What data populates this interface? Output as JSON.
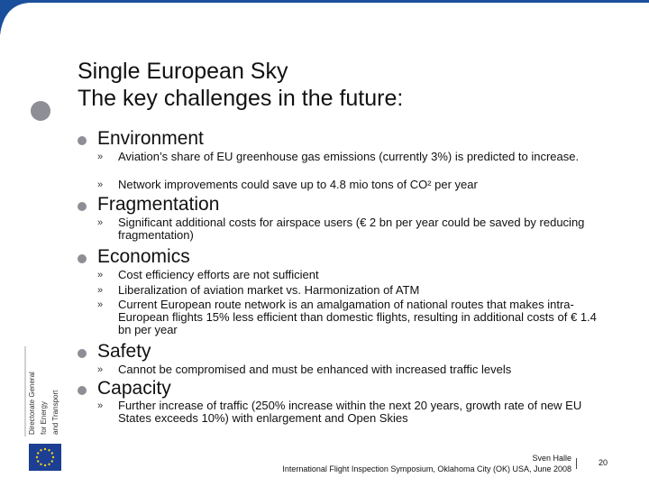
{
  "slide": {
    "title_line1": "Single European Sky",
    "title_line2": "The key challenges in the future:"
  },
  "sections": [
    {
      "heading": "Environment",
      "bullets": [
        "Aviation’s share of EU greenhouse gas emissions (currently 3%) is predicted to increase.",
        "Network improvements could save up to 4.8 mio tons of CO² per year"
      ]
    },
    {
      "heading": "Fragmentation",
      "bullets": [
        "Significant additional costs for airspace users (€ 2 bn per year could be saved by reducing fragmentation)"
      ]
    },
    {
      "heading": "Economics",
      "bullets": [
        "Cost efficiency efforts are not sufficient",
        "Liberalization of aviation market vs. Harmonization of ATM",
        "Current European route network is an amalgamation of national routes that makes intra-European flights 15% less efficient than domestic flights, resulting in additional costs of € 1.4 bn per year"
      ]
    },
    {
      "heading": "Safety",
      "bullets": [
        "Cannot be compromised and must be enhanced with increased traffic levels"
      ]
    },
    {
      "heading": "Capacity",
      "bullets": [
        "Further increase of traffic (250% increase within the next 20 years, growth rate of new EU States exceeds 10%) with enlargement and Open Skies"
      ]
    }
  ],
  "side_label": {
    "line1": "Directorate General",
    "line2": "for Energy",
    "line3": "and Transport"
  },
  "footer": {
    "author": "Sven Halle",
    "event": "International Flight Inspection Symposium, Oklahoma City (OK) USA, June 2008",
    "page_number": "20"
  },
  "colors": {
    "header_blue": "#1a4f9c",
    "bullet_grey": "#8e8e96",
    "flag_blue": "#1c3f94",
    "flag_star": "#f3d21a"
  },
  "icons": {
    "bullet_chevron": "»",
    "flag": "eu-flag-icon"
  }
}
